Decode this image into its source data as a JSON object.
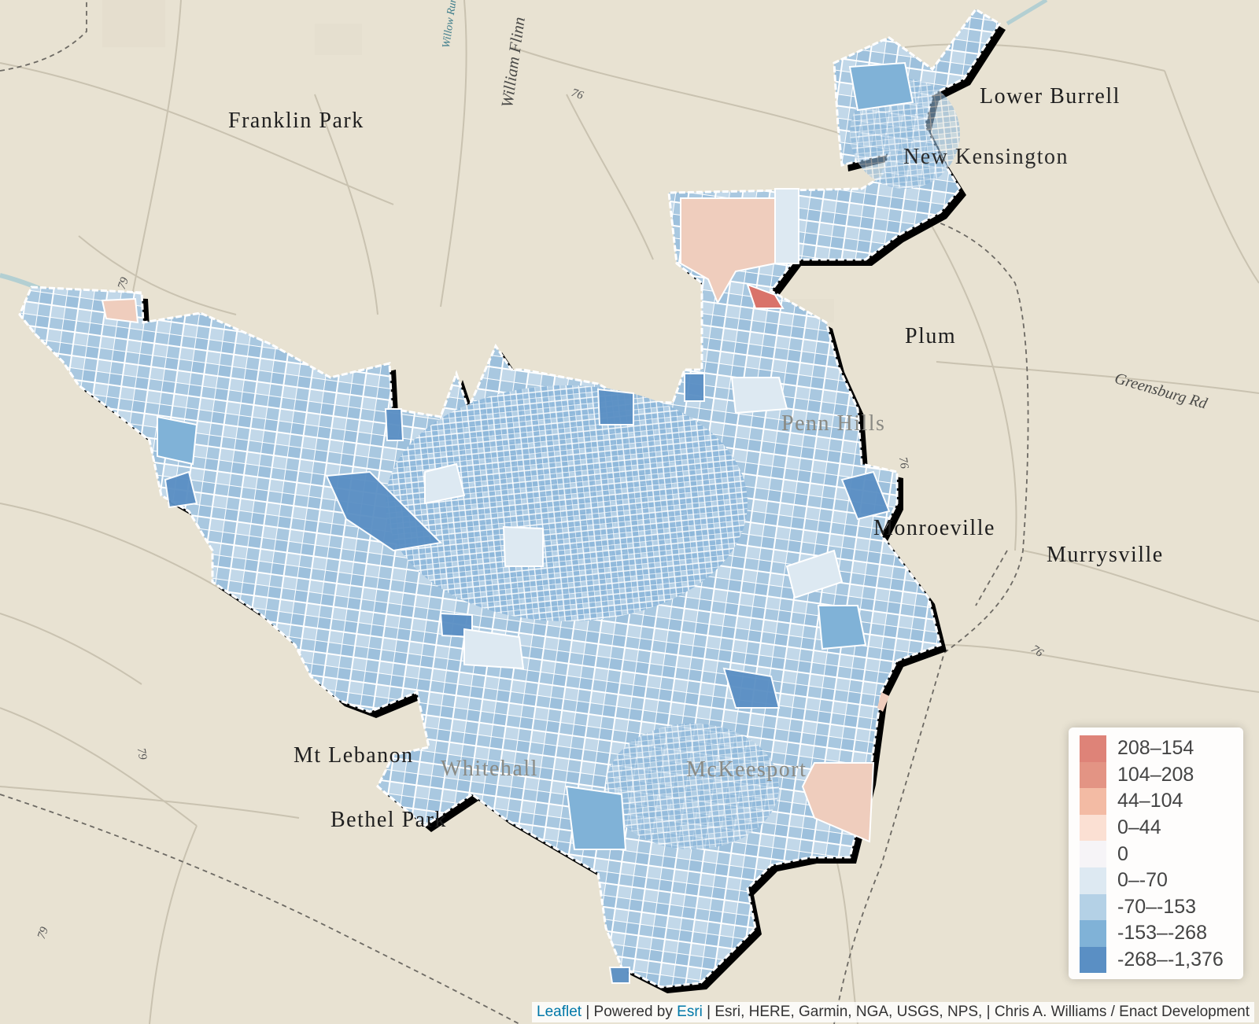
{
  "map": {
    "places": [
      {
        "id": "franklin-park",
        "label": "Franklin Park"
      },
      {
        "id": "lower-burrell",
        "label": "Lower Burrell"
      },
      {
        "id": "new-kensington",
        "label": "New Kensington"
      },
      {
        "id": "plum",
        "label": "Plum"
      },
      {
        "id": "penn-hills",
        "label": "Penn Hills"
      },
      {
        "id": "monroeville",
        "label": "Monroeville"
      },
      {
        "id": "murrysville",
        "label": "Murrysville"
      },
      {
        "id": "mt-lebanon",
        "label": "Mt Lebanon"
      },
      {
        "id": "whitehall",
        "label": "Whitehall"
      },
      {
        "id": "bethel-park",
        "label": "Bethel Park"
      },
      {
        "id": "mckeesport",
        "label": "McKeesport"
      }
    ],
    "roads": [
      {
        "id": "willow-run",
        "label": "Willow Run"
      },
      {
        "id": "william-flinn",
        "label": "William Flinn"
      },
      {
        "id": "greensburg-rd",
        "label": "Greensburg Rd"
      }
    ],
    "highways": [
      {
        "id": "hwy-76-north",
        "label": "76"
      },
      {
        "id": "hwy-79-west",
        "label": "79"
      },
      {
        "id": "hwy-79-south",
        "label": "79"
      },
      {
        "id": "hwy-79-southwest",
        "label": "79"
      },
      {
        "id": "hwy-76-east",
        "label": "76"
      },
      {
        "id": "hwy-76-southeast",
        "label": "76"
      }
    ]
  },
  "legend": {
    "items": [
      {
        "label": "208–154",
        "color": "#de8378"
      },
      {
        "label": "104–208",
        "color": "#e39484"
      },
      {
        "label": "44–104",
        "color": "#f3bba4"
      },
      {
        "label": "0–44",
        "color": "#fbe0d3"
      },
      {
        "label": "0",
        "color": "#f6f4f7"
      },
      {
        "label": "0–-70",
        "color": "#dde9f2"
      },
      {
        "label": "-70–-153",
        "color": "#b4d1e6"
      },
      {
        "label": "-153–-268",
        "color": "#80b2d7"
      },
      {
        "label": "-268–-1,376",
        "color": "#5a8fc4"
      }
    ]
  },
  "attribution": {
    "leaflet": "Leaflet",
    "sep1": " | Powered by ",
    "esri": "Esri",
    "rest": " | Esri, HERE, Garmin, NGA, USGS, NPS, | Chris A. Williams / Enact Development"
  }
}
